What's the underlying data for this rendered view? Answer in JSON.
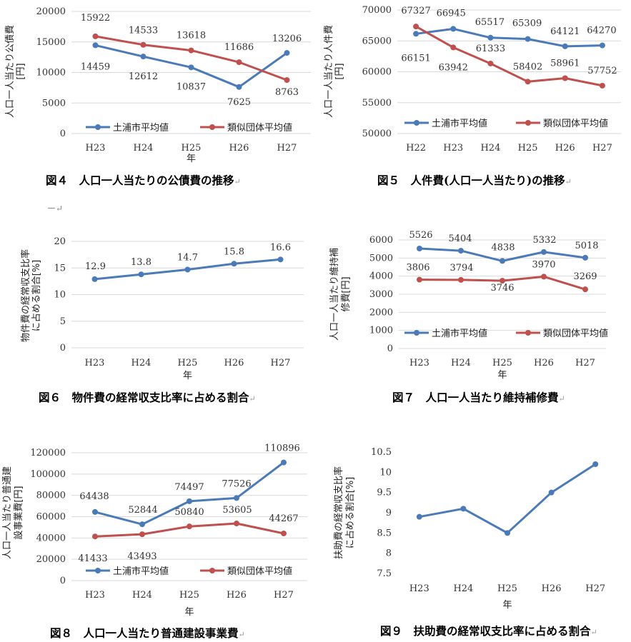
{
  "captions": [
    {
      "text": "図４　人口一人当たりの公債費の推移"
    },
    {
      "text": "図５　人件費(人口一人当たり)の推移"
    },
    {
      "text": "図６　物件費の経常収支比率に占める割合"
    },
    {
      "text": "図７　人口一人当たり維持補修費"
    },
    {
      "text": "図８　人口一人当たり普通建設事業費"
    },
    {
      "text": "図９　扶助費の経常収支比率に占める割合"
    }
  ],
  "caption_mark": "↵",
  "stray_mark": "ー↵",
  "colors": {
    "blue": "#4a7ab8",
    "red": "#c0504d",
    "grid": "#d9d9d9"
  },
  "chart_data": [
    {
      "type": "line",
      "categories": [
        "H23",
        "H24",
        "H25",
        "H26",
        "H27"
      ],
      "series": [
        {
          "name": "土浦市平均値",
          "values": [
            14459,
            12612,
            10837,
            7625,
            13206
          ]
        },
        {
          "name": "類似団体平均値",
          "values": [
            15922,
            14533,
            13618,
            11686,
            8763
          ]
        }
      ],
      "xlabel": "年",
      "ylabel": [
        "人口一人当たり公債費",
        "[円]"
      ],
      "ylim": [
        0,
        20000
      ],
      "ticks": [
        "0",
        "5000",
        "10000",
        "15000",
        "20000"
      ],
      "grid": true,
      "legend": "bottom"
    },
    {
      "type": "line",
      "categories": [
        "H22",
        "H23",
        "H24",
        "H25",
        "H26",
        "H27"
      ],
      "series": [
        {
          "name": "土浦市平均値",
          "values": [
            66151,
            66945,
            65517,
            65309,
            64121,
            64270
          ]
        },
        {
          "name": "類似団体平均値",
          "values": [
            67327,
            63942,
            61333,
            58402,
            58961,
            57752
          ]
        }
      ],
      "xlabel": "",
      "ylabel": [
        "人口一人当たり人件費",
        "[円]"
      ],
      "ylim": [
        50000,
        70000
      ],
      "ticks": [
        "50000",
        "55000",
        "60000",
        "65000",
        "70000"
      ],
      "grid": true,
      "legend": "bottom"
    },
    {
      "type": "line",
      "categories": [
        "H23",
        "H24",
        "H25",
        "H26",
        "H27"
      ],
      "series": [
        {
          "values": [
            12.9,
            13.8,
            14.7,
            15.8,
            16.6
          ]
        }
      ],
      "xlabel": "年",
      "ylabel": [
        "物件費の経常収支比率",
        "に占める割合[%]"
      ],
      "ylim": [
        0,
        20
      ],
      "ticks": [
        "0",
        "5",
        "10",
        "15",
        "20"
      ],
      "grid": true,
      "legend": "none"
    },
    {
      "type": "line",
      "categories": [
        "H23",
        "H24",
        "H25",
        "H26",
        "H27"
      ],
      "series": [
        {
          "name": "土浦市平均値",
          "values": [
            5526,
            5404,
            4838,
            5332,
            5018
          ]
        },
        {
          "name": "類似団体平均値",
          "values": [
            3806,
            3794,
            3746,
            3970,
            3269
          ]
        }
      ],
      "xlabel": "年",
      "ylabel": [
        "人口一人当たり維持補",
        "修費[円]"
      ],
      "ylim": [
        0,
        6000
      ],
      "ticks": [
        "0",
        "1000",
        "2000",
        "3000",
        "4000",
        "5000",
        "6000"
      ],
      "grid": true,
      "legend": "bottom"
    },
    {
      "type": "line",
      "categories": [
        "H23",
        "H24",
        "H25",
        "H26",
        "H27"
      ],
      "series": [
        {
          "name": "土浦市平均値",
          "values": [
            64438,
            52844,
            74497,
            77526,
            110896
          ]
        },
        {
          "name": "類似団体平均値",
          "values": [
            41433,
            43493,
            50840,
            53605,
            44267
          ]
        }
      ],
      "xlabel": "年",
      "ylabel": [
        "人口一人当たり普通建",
        "設事業費[円]"
      ],
      "ylim": [
        0,
        120000
      ],
      "ticks": [
        "0",
        "20000",
        "40000",
        "60000",
        "80000",
        "100000",
        "120000"
      ],
      "grid": true,
      "legend": "bottom"
    },
    {
      "type": "line",
      "categories": [
        "H23",
        "H24",
        "H25",
        "H26",
        "H27"
      ],
      "series": [
        {
          "values": [
            8.9,
            9.1,
            8.5,
            9.5,
            10.2
          ]
        }
      ],
      "xlabel": "年",
      "ylabel": [
        "扶助費の経常収支比率",
        "に占める割合[%]"
      ],
      "ylim": [
        7.5,
        10.5
      ],
      "ticks": [
        "7.5",
        "8",
        "8.5",
        "9",
        "9.5",
        "10",
        "10.5"
      ],
      "grid": false,
      "legend": "none"
    }
  ]
}
